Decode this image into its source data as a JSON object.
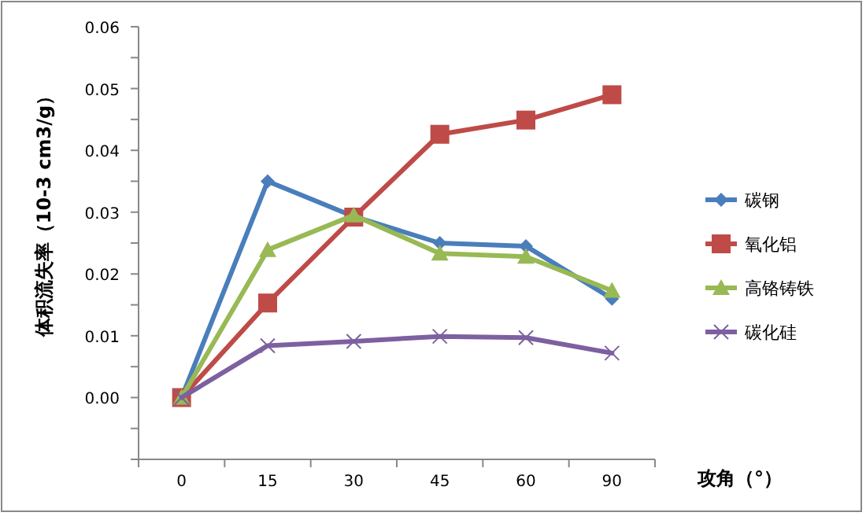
{
  "chart_data": {
    "type": "line",
    "xlabel": "攻角（°）",
    "ylabel": "体积流失率（10-3 cm3/g）",
    "categories": [
      "0",
      "15",
      "30",
      "45",
      "60",
      "90"
    ],
    "series": [
      {
        "name": "碳钢",
        "color": "#4a7ebb",
        "marker": "diamond",
        "values": [
          0,
          0.035,
          0.0293,
          0.025,
          0.0245,
          0.016
        ]
      },
      {
        "name": "氧化铝",
        "color": "#be4b48",
        "marker": "square",
        "values": [
          0,
          0.0153,
          0.0292,
          0.0426,
          0.0449,
          0.049
        ]
      },
      {
        "name": "高铬铸铁",
        "color": "#98b954",
        "marker": "triangle",
        "values": [
          0,
          0.0239,
          0.0295,
          0.0233,
          0.0228,
          0.0173
        ]
      },
      {
        "name": "碳化硅",
        "color": "#7d60a0",
        "marker": "cross",
        "values": [
          0,
          0.0084,
          0.0091,
          0.0099,
          0.0097,
          0.0072
        ]
      }
    ],
    "ylim": [
      -0.01,
      0.06
    ],
    "yticks": [
      {
        "value": -0.01,
        "label": null
      },
      {
        "value": -0.005,
        "label": null
      },
      "0.00",
      {
        "value": 0.005,
        "label": null
      },
      {
        "value": 0.01,
        "label": "0.01"
      },
      {
        "value": 0.015,
        "label": null
      },
      {
        "value": 0.02,
        "label": "0.02"
      },
      {
        "value": 0.025,
        "label": null
      },
      {
        "value": 0.03,
        "label": "0.03"
      },
      {
        "value": 0.035,
        "label": null
      },
      {
        "value": 0.04,
        "label": "0.04"
      },
      {
        "value": 0.045,
        "label": null
      },
      {
        "value": 0.05,
        "label": "0.05"
      },
      {
        "value": 0.055,
        "label": null
      },
      {
        "value": 0.06,
        "label": "0.06"
      }
    ],
    "grid": false,
    "legend": "right"
  }
}
